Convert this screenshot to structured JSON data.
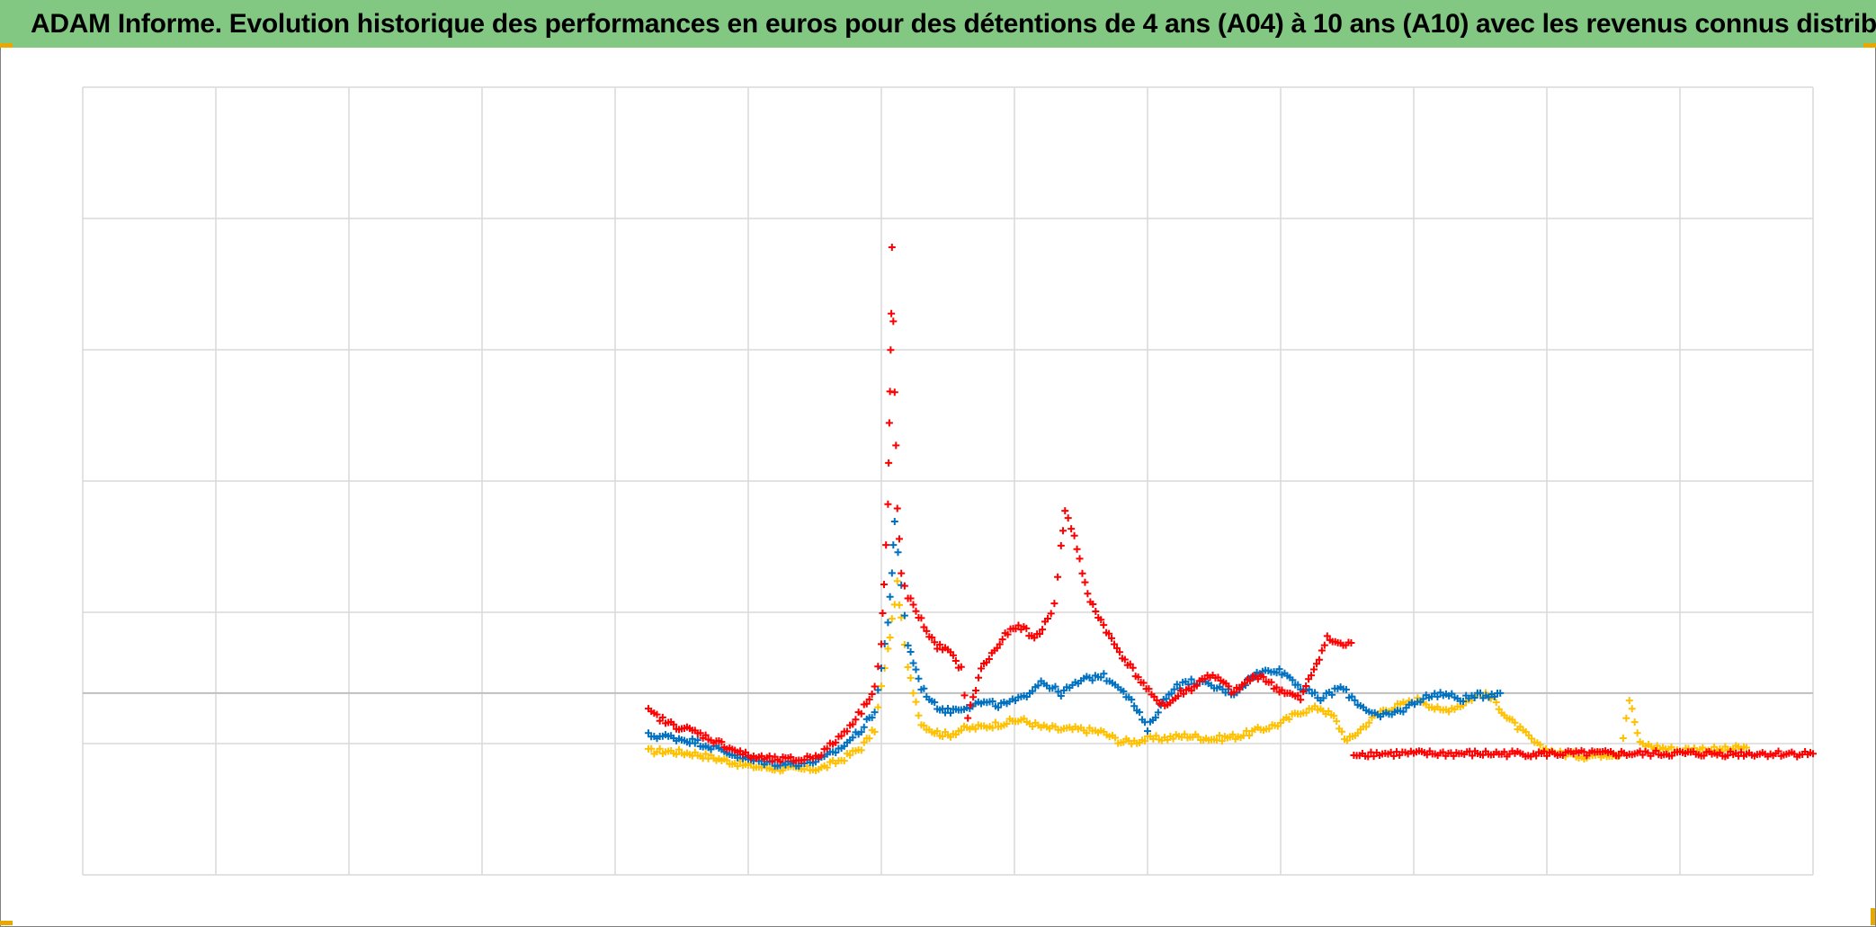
{
  "title": "ADAM Informe. Evolution historique des performances en euros pour des détentions de 4 ans (A04) à 10 ans (A10) avec les revenus connus distribués",
  "colors": {
    "title_background": "#82c882",
    "grid": "#d9d9d9",
    "axis": "#bfbfbf",
    "corner_marker": "#e8a800"
  },
  "chart_data": {
    "type": "scatter",
    "marker": "plus",
    "grid": true,
    "legend": "none",
    "x_gridlines": 13,
    "y_gridlines": 6,
    "xlim": [
      0,
      13
    ],
    "ylim": [
      -1.5,
      5.0
    ],
    "zero_line": 0,
    "series": [
      {
        "color": "#ffc000",
        "points": [
          [
            4.25,
            -0.48
          ],
          [
            4.4,
            -0.48
          ],
          [
            4.6,
            -0.5
          ],
          [
            4.8,
            -0.55
          ],
          [
            5.0,
            -0.6
          ],
          [
            5.2,
            -0.62
          ],
          [
            5.4,
            -0.63
          ],
          [
            5.55,
            -0.62
          ],
          [
            5.7,
            -0.55
          ],
          [
            5.85,
            -0.45
          ],
          [
            5.95,
            -0.3
          ],
          [
            6.0,
            0.05
          ],
          [
            6.05,
            0.35
          ],
          [
            6.08,
            0.6
          ],
          [
            6.12,
            0.9
          ],
          [
            6.15,
            0.6
          ],
          [
            6.2,
            0.2
          ],
          [
            6.3,
            -0.25
          ],
          [
            6.4,
            -0.32
          ],
          [
            6.5,
            -0.35
          ],
          [
            6.6,
            -0.3
          ],
          [
            6.75,
            -0.28
          ],
          [
            6.9,
            -0.25
          ],
          [
            7.05,
            -0.22
          ],
          [
            7.2,
            -0.28
          ],
          [
            7.35,
            -0.3
          ],
          [
            7.5,
            -0.3
          ],
          [
            7.65,
            -0.32
          ],
          [
            7.8,
            -0.4
          ],
          [
            7.9,
            -0.4
          ],
          [
            8.0,
            -0.38
          ],
          [
            8.15,
            -0.37
          ],
          [
            8.3,
            -0.35
          ],
          [
            8.5,
            -0.38
          ],
          [
            8.7,
            -0.35
          ],
          [
            8.85,
            -0.3
          ],
          [
            9.0,
            -0.25
          ],
          [
            9.15,
            -0.15
          ],
          [
            9.3,
            -0.12
          ],
          [
            9.4,
            -0.2
          ],
          [
            9.5,
            -0.4
          ],
          [
            9.6,
            -0.3
          ],
          [
            9.75,
            -0.15
          ],
          [
            9.9,
            -0.1
          ],
          [
            10.05,
            -0.05
          ],
          [
            10.2,
            -0.15
          ],
          [
            10.35,
            -0.1
          ],
          [
            10.5,
            0.0
          ],
          [
            10.6,
            -0.05
          ],
          [
            10.7,
            -0.2
          ],
          [
            10.8,
            -0.3
          ],
          [
            10.95,
            -0.45
          ],
          [
            11.1,
            -0.5
          ],
          [
            11.3,
            -0.52
          ],
          [
            11.45,
            -0.5
          ],
          [
            11.55,
            -0.5
          ],
          [
            11.62,
            -0.05
          ],
          [
            11.7,
            -0.42
          ],
          [
            11.85,
            -0.45
          ],
          [
            12.0,
            -0.47
          ],
          [
            12.15,
            -0.46
          ],
          [
            12.3,
            -0.47
          ],
          [
            12.5,
            -0.45
          ]
        ]
      },
      {
        "color": "#0070c0",
        "points": [
          [
            4.25,
            -0.35
          ],
          [
            4.4,
            -0.36
          ],
          [
            4.6,
            -0.4
          ],
          [
            4.8,
            -0.47
          ],
          [
            5.0,
            -0.55
          ],
          [
            5.2,
            -0.58
          ],
          [
            5.4,
            -0.58
          ],
          [
            5.55,
            -0.55
          ],
          [
            5.7,
            -0.45
          ],
          [
            5.85,
            -0.3
          ],
          [
            5.95,
            -0.15
          ],
          [
            6.0,
            0.2
          ],
          [
            6.05,
            0.6
          ],
          [
            6.08,
            1.0
          ],
          [
            6.1,
            1.4
          ],
          [
            6.15,
            0.9
          ],
          [
            6.2,
            0.4
          ],
          [
            6.3,
            0.05
          ],
          [
            6.4,
            -0.1
          ],
          [
            6.5,
            -0.15
          ],
          [
            6.6,
            -0.12
          ],
          [
            6.75,
            -0.08
          ],
          [
            6.9,
            -0.1
          ],
          [
            7.05,
            -0.05
          ],
          [
            7.2,
            0.1
          ],
          [
            7.35,
            0.0
          ],
          [
            7.5,
            0.1
          ],
          [
            7.65,
            0.15
          ],
          [
            7.8,
            0.05
          ],
          [
            7.9,
            -0.1
          ],
          [
            8.0,
            -0.3
          ],
          [
            8.1,
            -0.1
          ],
          [
            8.2,
            0.05
          ],
          [
            8.35,
            0.1
          ],
          [
            8.5,
            0.05
          ],
          [
            8.65,
            0.0
          ],
          [
            8.8,
            0.15
          ],
          [
            8.95,
            0.2
          ],
          [
            9.05,
            0.15
          ],
          [
            9.15,
            0.05
          ],
          [
            9.3,
            -0.05
          ],
          [
            9.45,
            0.05
          ],
          [
            9.6,
            -0.1
          ],
          [
            9.75,
            -0.2
          ],
          [
            9.9,
            -0.15
          ],
          [
            10.05,
            -0.05
          ],
          [
            10.2,
            0.0
          ],
          [
            10.35,
            -0.05
          ],
          [
            10.5,
            -0.02
          ],
          [
            10.65,
            0.0
          ]
        ]
      },
      {
        "color": "#ff0000",
        "points": [
          [
            4.25,
            -0.15
          ],
          [
            4.4,
            -0.25
          ],
          [
            4.6,
            -0.32
          ],
          [
            4.8,
            -0.42
          ],
          [
            5.0,
            -0.52
          ],
          [
            5.2,
            -0.55
          ],
          [
            5.4,
            -0.55
          ],
          [
            5.55,
            -0.5
          ],
          [
            5.7,
            -0.35
          ],
          [
            5.85,
            -0.15
          ],
          [
            5.95,
            0.05
          ],
          [
            6.0,
            0.4
          ],
          [
            6.02,
            0.9
          ],
          [
            6.05,
            1.5
          ],
          [
            6.06,
            2.2
          ],
          [
            6.07,
            2.8
          ],
          [
            6.08,
            3.6
          ],
          [
            6.1,
            2.5
          ],
          [
            6.12,
            1.5
          ],
          [
            6.15,
            1.0
          ],
          [
            6.2,
            0.8
          ],
          [
            6.3,
            0.6
          ],
          [
            6.4,
            0.4
          ],
          [
            6.5,
            0.35
          ],
          [
            6.6,
            0.2
          ],
          [
            6.65,
            -0.2
          ],
          [
            6.75,
            0.2
          ],
          [
            6.85,
            0.35
          ],
          [
            6.95,
            0.5
          ],
          [
            7.05,
            0.55
          ],
          [
            7.15,
            0.45
          ],
          [
            7.25,
            0.6
          ],
          [
            7.3,
            0.75
          ],
          [
            7.35,
            1.2
          ],
          [
            7.38,
            1.5
          ],
          [
            7.45,
            1.3
          ],
          [
            7.55,
            0.8
          ],
          [
            7.65,
            0.6
          ],
          [
            7.75,
            0.4
          ],
          [
            7.85,
            0.25
          ],
          [
            7.95,
            0.1
          ],
          [
            8.05,
            -0.05
          ],
          [
            8.15,
            -0.1
          ],
          [
            8.25,
            0.0
          ],
          [
            8.35,
            0.05
          ],
          [
            8.45,
            0.15
          ],
          [
            8.55,
            0.1
          ],
          [
            8.65,
            0.0
          ],
          [
            8.75,
            0.1
          ],
          [
            8.85,
            0.15
          ],
          [
            8.95,
            0.05
          ],
          [
            9.05,
            0.0
          ],
          [
            9.15,
            -0.05
          ],
          [
            9.25,
            0.2
          ],
          [
            9.35,
            0.45
          ],
          [
            9.45,
            0.4
          ],
          [
            9.55,
            0.4
          ],
          [
            9.55,
            -0.5
          ],
          [
            9.7,
            -0.5
          ],
          [
            9.85,
            -0.5
          ],
          [
            10.0,
            -0.5
          ],
          [
            10.2,
            -0.5
          ],
          [
            10.4,
            -0.5
          ],
          [
            10.6,
            -0.5
          ],
          [
            10.8,
            -0.5
          ],
          [
            11.0,
            -0.5
          ],
          [
            11.2,
            -0.5
          ],
          [
            11.4,
            -0.5
          ],
          [
            11.6,
            -0.5
          ],
          [
            11.8,
            -0.5
          ],
          [
            12.0,
            -0.5
          ],
          [
            12.2,
            -0.5
          ],
          [
            12.4,
            -0.5
          ],
          [
            12.6,
            -0.5
          ],
          [
            12.8,
            -0.5
          ],
          [
            13.0,
            -0.5
          ]
        ]
      }
    ]
  }
}
